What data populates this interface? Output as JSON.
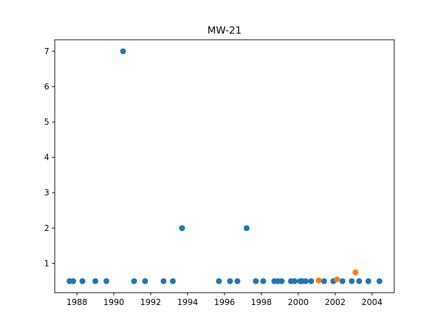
{
  "chart_data": {
    "type": "scatter",
    "title": "MW-21",
    "xlabel": "",
    "ylabel": "",
    "xlim": [
      1986.8,
      2005.2
    ],
    "ylim": [
      0.175,
      7.325
    ],
    "x_ticks": [
      "1988",
      "1990",
      "1992",
      "1994",
      "1996",
      "1998",
      "2000",
      "2002",
      "2004"
    ],
    "y_ticks": [
      "1",
      "2",
      "3",
      "4",
      "5",
      "6",
      "7"
    ],
    "grid": false,
    "legend": "none",
    "series": [
      {
        "color": "#1f77b4",
        "points": [
          {
            "x": 1987.6,
            "y": 0.5
          },
          {
            "x": 1987.8,
            "y": 0.5
          },
          {
            "x": 1988.3,
            "y": 0.5
          },
          {
            "x": 1989.0,
            "y": 0.5
          },
          {
            "x": 1989.6,
            "y": 0.5
          },
          {
            "x": 1990.5,
            "y": 7.0
          },
          {
            "x": 1991.1,
            "y": 0.5
          },
          {
            "x": 1991.7,
            "y": 0.5
          },
          {
            "x": 1992.7,
            "y": 0.5
          },
          {
            "x": 1993.2,
            "y": 0.5
          },
          {
            "x": 1993.7,
            "y": 2.0
          },
          {
            "x": 1995.7,
            "y": 0.5
          },
          {
            "x": 1996.3,
            "y": 0.5
          },
          {
            "x": 1996.7,
            "y": 0.5
          },
          {
            "x": 1997.2,
            "y": 2.0
          },
          {
            "x": 1997.7,
            "y": 0.5
          },
          {
            "x": 1998.1,
            "y": 0.5
          },
          {
            "x": 1998.7,
            "y": 0.5
          },
          {
            "x": 1998.9,
            "y": 0.5
          },
          {
            "x": 1999.1,
            "y": 0.5
          },
          {
            "x": 1999.6,
            "y": 0.5
          },
          {
            "x": 1999.8,
            "y": 0.5
          },
          {
            "x": 2000.1,
            "y": 0.5
          },
          {
            "x": 2000.2,
            "y": 0.5
          },
          {
            "x": 2000.4,
            "y": 0.5
          },
          {
            "x": 2000.7,
            "y": 0.5
          },
          {
            "x": 2001.4,
            "y": 0.5
          },
          {
            "x": 2001.9,
            "y": 0.5
          },
          {
            "x": 2002.4,
            "y": 0.5
          },
          {
            "x": 2002.9,
            "y": 0.5
          },
          {
            "x": 2003.3,
            "y": 0.5
          },
          {
            "x": 2003.8,
            "y": 0.5
          },
          {
            "x": 2004.4,
            "y": 0.5
          }
        ]
      },
      {
        "color": "#ff7f0e",
        "points": [
          {
            "x": 2001.1,
            "y": 0.52
          },
          {
            "x": 2002.1,
            "y": 0.55
          },
          {
            "x": 2003.1,
            "y": 0.75
          }
        ]
      }
    ]
  }
}
